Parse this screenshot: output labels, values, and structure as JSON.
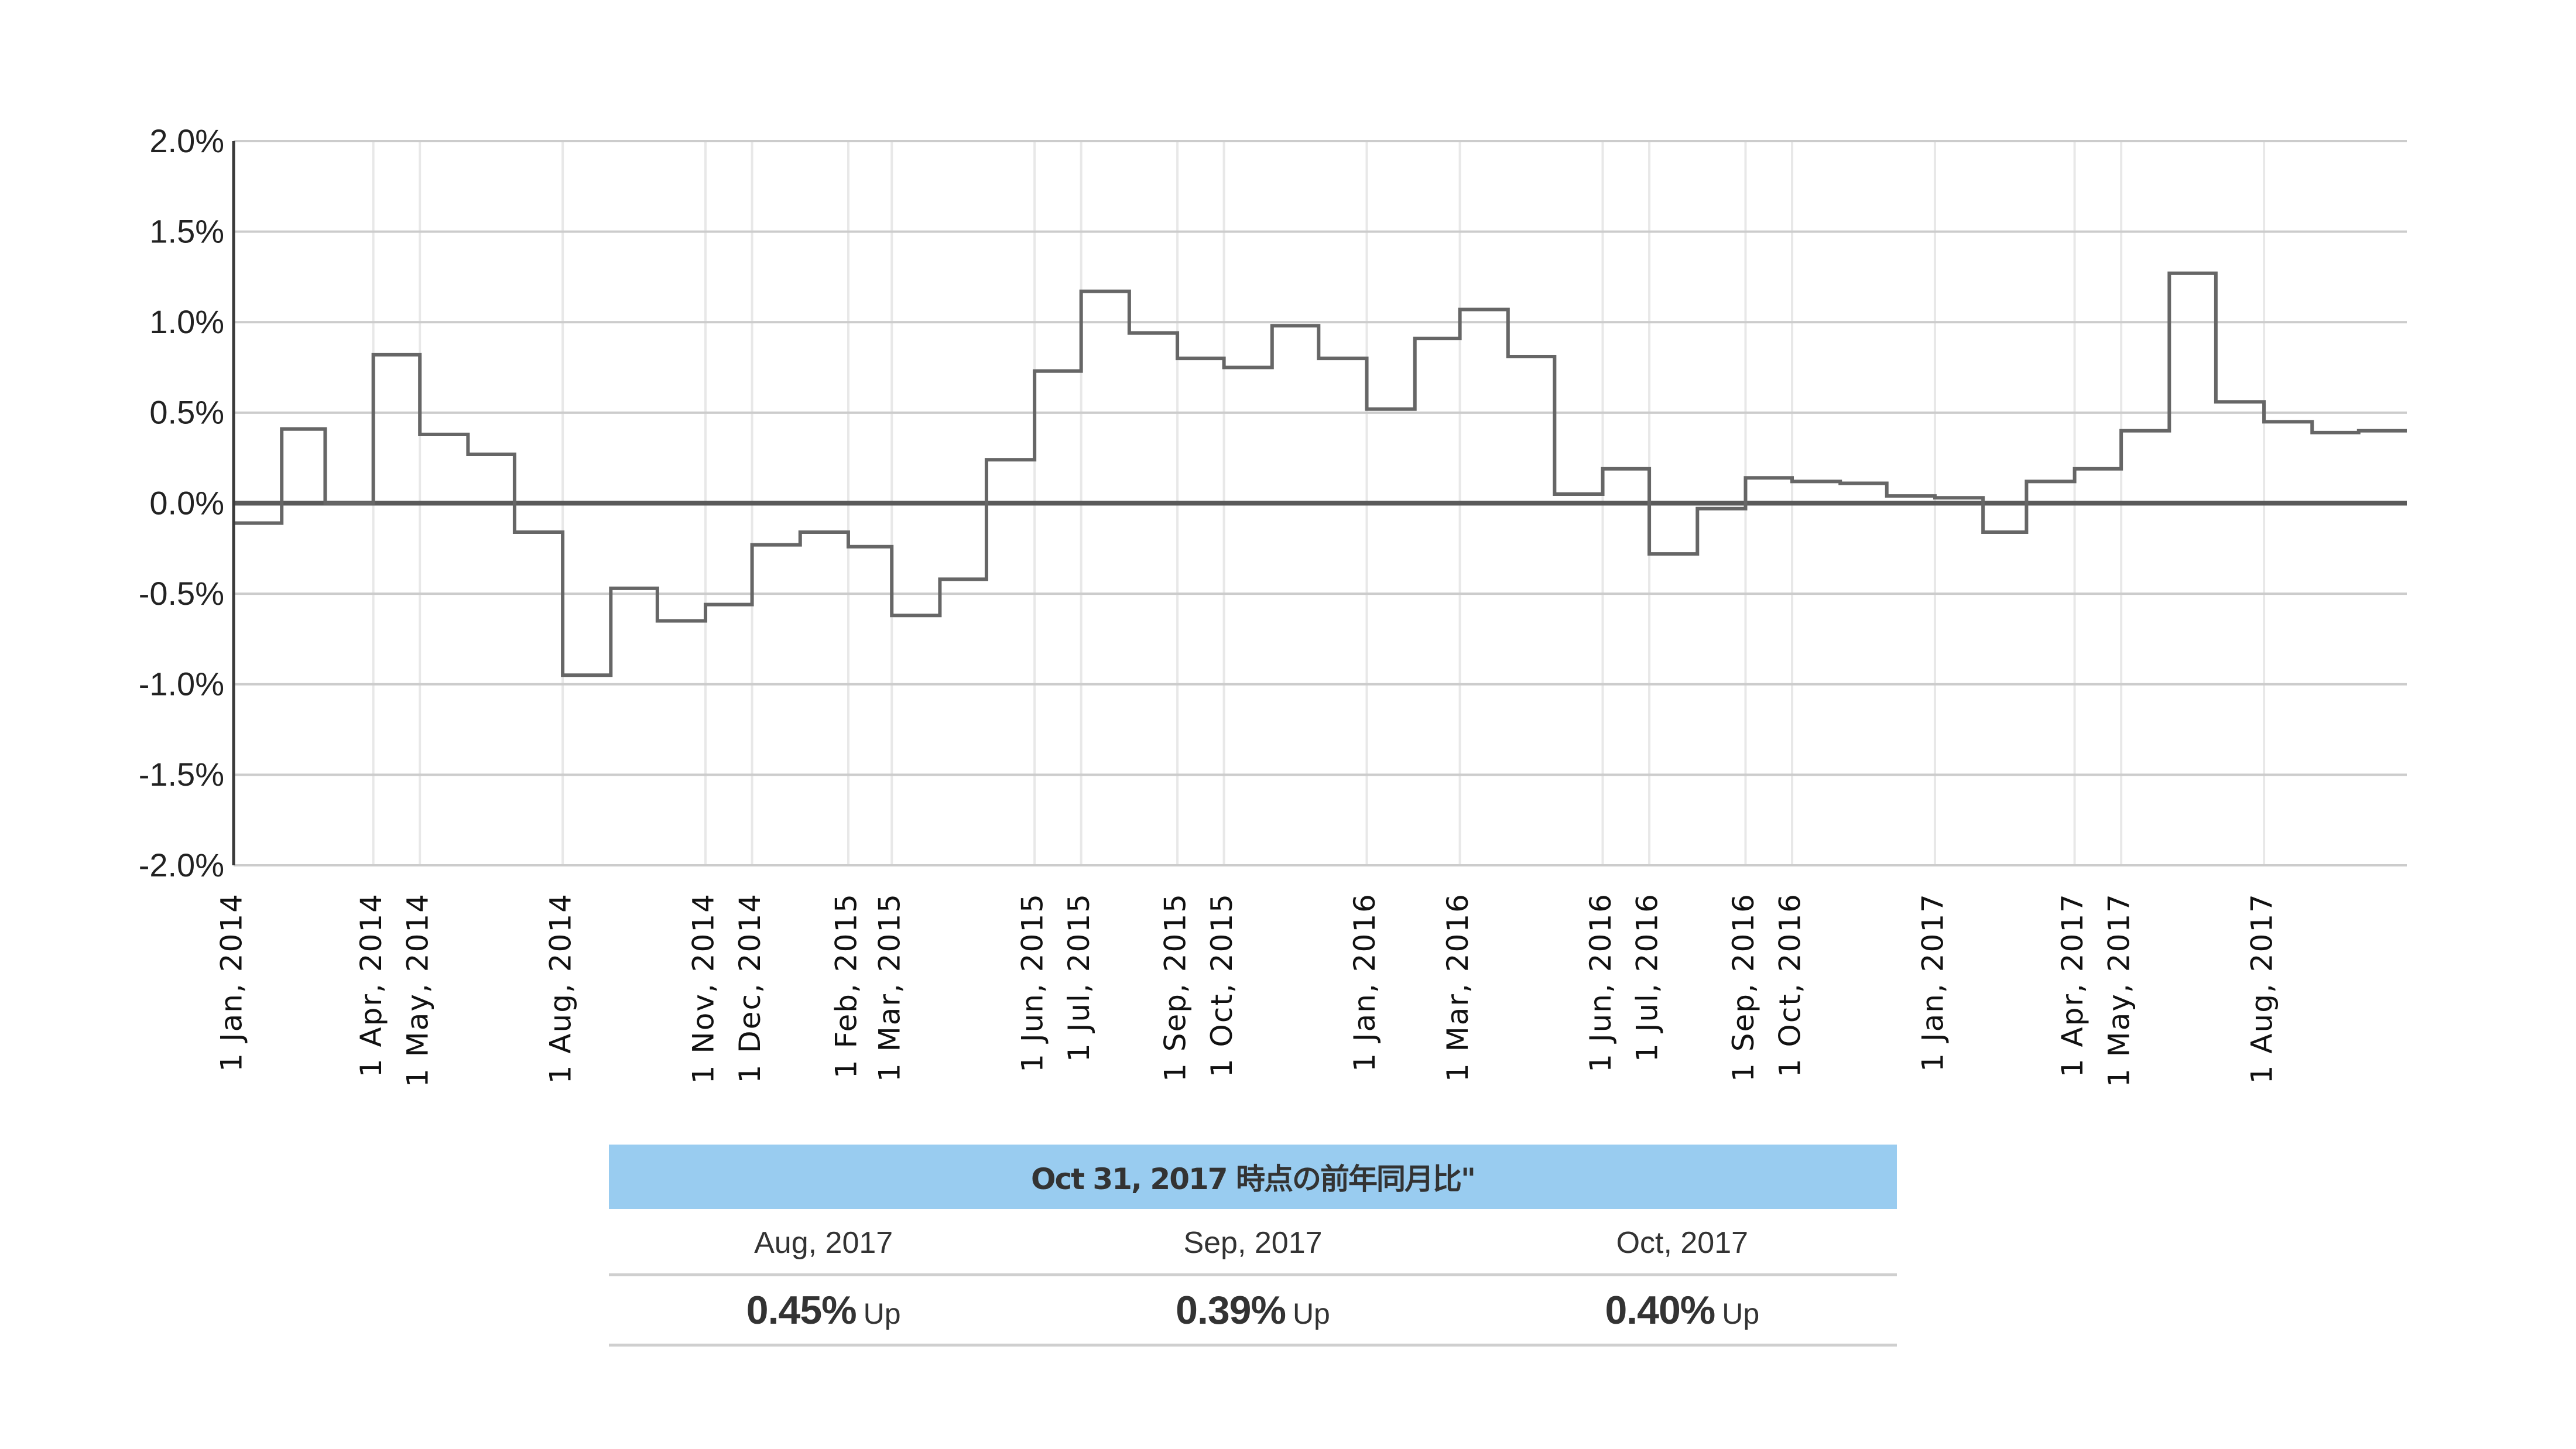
{
  "chart_data": {
    "type": "line",
    "subtype": "step",
    "title": "",
    "xlabel": "",
    "ylabel": "",
    "ylim": [
      -2.0,
      2.0
    ],
    "y_ticks": [
      "2.0%",
      "1.5%",
      "1.0%",
      "0.5%",
      "0.0%",
      "-0.5%",
      "-1.0%",
      "-1.5%",
      "-2.0%"
    ],
    "y_tick_values": [
      2.0,
      1.5,
      1.0,
      0.5,
      0.0,
      -0.5,
      -1.0,
      -1.5,
      -2.0
    ],
    "x_range": [
      "2014-01-01",
      "2017-10-31"
    ],
    "x_ticks": [
      {
        "label": "1 Jan, 2014",
        "date": "2014-01-01"
      },
      {
        "label": "1 Apr, 2014",
        "date": "2014-04-01"
      },
      {
        "label": "1 May, 2014",
        "date": "2014-05-01"
      },
      {
        "label": "1 Aug, 2014",
        "date": "2014-08-01"
      },
      {
        "label": "1 Nov, 2014",
        "date": "2014-11-01"
      },
      {
        "label": "1 Dec, 2014",
        "date": "2014-12-01"
      },
      {
        "label": "1 Feb, 2015",
        "date": "2015-02-01"
      },
      {
        "label": "1 Mar, 2015",
        "date": "2015-03-01"
      },
      {
        "label": "1 Jun, 2015",
        "date": "2015-06-01"
      },
      {
        "label": "1 Jul, 2015",
        "date": "2015-07-01"
      },
      {
        "label": "1 Sep, 2015",
        "date": "2015-09-01"
      },
      {
        "label": "1 Oct, 2015",
        "date": "2015-10-01"
      },
      {
        "label": "1 Jan, 2016",
        "date": "2016-01-01"
      },
      {
        "label": "1 Mar, 2016",
        "date": "2016-03-01"
      },
      {
        "label": "1 Jun, 2016",
        "date": "2016-06-01"
      },
      {
        "label": "1 Jul, 2016",
        "date": "2016-07-01"
      },
      {
        "label": "1 Sep, 2016",
        "date": "2016-09-01"
      },
      {
        "label": "1 Oct, 2016",
        "date": "2016-10-01"
      },
      {
        "label": "1 Jan, 2017",
        "date": "2017-01-01"
      },
      {
        "label": "1 Apr, 2017",
        "date": "2017-04-01"
      },
      {
        "label": "1 May, 2017",
        "date": "2017-05-01"
      },
      {
        "label": "1 Aug, 2017",
        "date": "2017-08-01"
      }
    ],
    "grid": {
      "horizontal": true,
      "vertical": true
    },
    "legend": null,
    "series": [
      {
        "name": "前年同月比",
        "unit": "%",
        "color": "#666666",
        "x": [
          "2014-01",
          "2014-02",
          "2014-03",
          "2014-04",
          "2014-05",
          "2014-06",
          "2014-07",
          "2014-08",
          "2014-09",
          "2014-10",
          "2014-11",
          "2014-12",
          "2015-01",
          "2015-02",
          "2015-03",
          "2015-04",
          "2015-05",
          "2015-06",
          "2015-07",
          "2015-08",
          "2015-09",
          "2015-10",
          "2015-11",
          "2015-12",
          "2016-01",
          "2016-02",
          "2016-03",
          "2016-04",
          "2016-05",
          "2016-06",
          "2016-07",
          "2016-08",
          "2016-09",
          "2016-10",
          "2016-11",
          "2016-12",
          "2017-01",
          "2017-02",
          "2017-03",
          "2017-04",
          "2017-05",
          "2017-06",
          "2017-07",
          "2017-08",
          "2017-09",
          "2017-10"
        ],
        "values": [
          -0.11,
          0.41,
          0.0,
          0.82,
          0.38,
          0.27,
          -0.16,
          -0.95,
          -0.47,
          -0.65,
          -0.56,
          -0.23,
          -0.16,
          -0.24,
          -0.62,
          -0.42,
          0.24,
          0.73,
          1.17,
          0.94,
          0.8,
          0.75,
          0.98,
          0.8,
          0.52,
          0.91,
          1.07,
          0.81,
          0.05,
          0.19,
          -0.28,
          -0.03,
          0.14,
          0.12,
          0.11,
          0.04,
          0.03,
          -0.16,
          0.12,
          0.19,
          0.4,
          1.27,
          0.56,
          0.45,
          0.39,
          0.4
        ]
      }
    ],
    "baseline": 0.0
  },
  "summary": {
    "title": "Oct 31, 2017 時点の前年同月比\"",
    "header_color": "#99ccf0",
    "columns": [
      {
        "month": "Aug, 2017",
        "value": "0.45%",
        "direction": "Up"
      },
      {
        "month": "Sep, 2017",
        "value": "0.39%",
        "direction": "Up"
      },
      {
        "month": "Oct, 2017",
        "value": "0.40%",
        "direction": "Up"
      }
    ]
  }
}
